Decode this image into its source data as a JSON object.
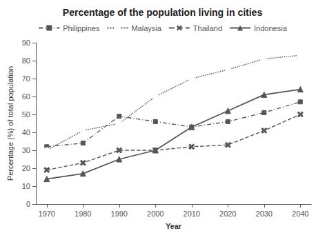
{
  "chart_data": {
    "type": "line",
    "title": "Percentage of the population living in cities",
    "xlabel": "Year",
    "ylabel": "Percentage (%) of total population",
    "x": [
      1970,
      1980,
      1990,
      2000,
      2010,
      2020,
      2030,
      2040
    ],
    "xlim": [
      1967,
      2043
    ],
    "xticks": [
      1970,
      1980,
      1990,
      2000,
      2010,
      2020,
      2030,
      2040
    ],
    "ylim": [
      0,
      90
    ],
    "yticks": [
      0,
      10,
      20,
      30,
      40,
      50,
      60,
      70,
      80,
      90
    ],
    "grid": false,
    "legend": "top",
    "series": [
      {
        "name": "Philippines",
        "color": "#555555",
        "marker": "square",
        "line_style": "dashdot",
        "values": [
          32,
          34,
          49,
          46,
          43,
          46,
          51,
          57
        ]
      },
      {
        "name": "Malaysia",
        "color": "#555555",
        "marker": "open_circle",
        "line_style": "dotted",
        "values": [
          30,
          41,
          45,
          60,
          70,
          75,
          81,
          83
        ]
      },
      {
        "name": "Thailand",
        "color": "#555555",
        "marker": "x",
        "line_style": "dashed",
        "values": [
          19,
          23,
          30,
          30,
          32,
          33,
          41,
          50
        ]
      },
      {
        "name": "Indonesia",
        "color": "#555555",
        "marker": "triangle",
        "line_style": "solid",
        "values": [
          14,
          17,
          25,
          30,
          43,
          52,
          61,
          64
        ]
      }
    ]
  }
}
